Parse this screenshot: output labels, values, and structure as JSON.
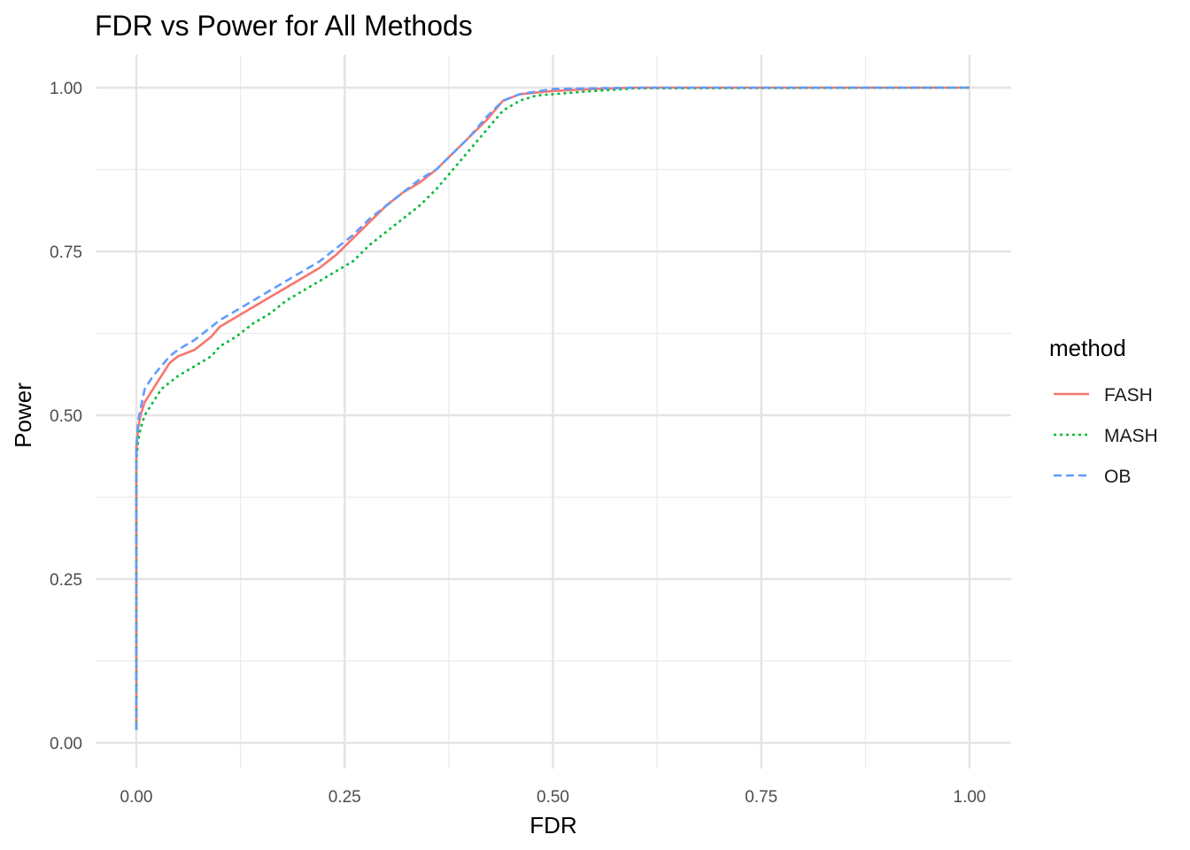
{
  "chart_data": {
    "type": "line",
    "title": "FDR vs Power for All Methods",
    "xlabel": "FDR",
    "ylabel": "Power",
    "xlim": [
      0,
      1
    ],
    "ylim": [
      0,
      1
    ],
    "x_ticks": [
      "0.00",
      "0.25",
      "0.50",
      "0.75",
      "1.00"
    ],
    "y_ticks": [
      "0.00",
      "0.25",
      "0.50",
      "0.75",
      "1.00"
    ],
    "grid": true,
    "legend": {
      "title": "method",
      "position": "right"
    },
    "series": [
      {
        "name": "FASH",
        "color": "#F8766D",
        "dash": "solid",
        "points": [
          [
            0.0,
            0.02
          ],
          [
            0.0,
            0.3
          ],
          [
            0.0,
            0.45
          ],
          [
            0.002,
            0.48
          ],
          [
            0.005,
            0.5
          ],
          [
            0.01,
            0.52
          ],
          [
            0.02,
            0.54
          ],
          [
            0.03,
            0.56
          ],
          [
            0.04,
            0.58
          ],
          [
            0.05,
            0.59
          ],
          [
            0.07,
            0.6
          ],
          [
            0.09,
            0.62
          ],
          [
            0.1,
            0.635
          ],
          [
            0.12,
            0.65
          ],
          [
            0.14,
            0.665
          ],
          [
            0.16,
            0.68
          ],
          [
            0.18,
            0.695
          ],
          [
            0.2,
            0.71
          ],
          [
            0.22,
            0.725
          ],
          [
            0.24,
            0.745
          ],
          [
            0.26,
            0.77
          ],
          [
            0.28,
            0.795
          ],
          [
            0.3,
            0.82
          ],
          [
            0.32,
            0.84
          ],
          [
            0.34,
            0.855
          ],
          [
            0.36,
            0.875
          ],
          [
            0.38,
            0.9
          ],
          [
            0.4,
            0.925
          ],
          [
            0.42,
            0.95
          ],
          [
            0.44,
            0.98
          ],
          [
            0.46,
            0.99
          ],
          [
            0.5,
            0.995
          ],
          [
            0.55,
            0.998
          ],
          [
            0.6,
            1.0
          ],
          [
            1.0,
            1.0
          ]
        ]
      },
      {
        "name": "MASH",
        "color": "#00BA38",
        "dash": "dotted",
        "points": [
          [
            0.0,
            0.02
          ],
          [
            0.0,
            0.3
          ],
          [
            0.0,
            0.43
          ],
          [
            0.002,
            0.46
          ],
          [
            0.005,
            0.48
          ],
          [
            0.01,
            0.5
          ],
          [
            0.02,
            0.52
          ],
          [
            0.03,
            0.54
          ],
          [
            0.05,
            0.56
          ],
          [
            0.07,
            0.575
          ],
          [
            0.09,
            0.59
          ],
          [
            0.1,
            0.605
          ],
          [
            0.12,
            0.62
          ],
          [
            0.14,
            0.64
          ],
          [
            0.16,
            0.655
          ],
          [
            0.18,
            0.675
          ],
          [
            0.2,
            0.69
          ],
          [
            0.22,
            0.705
          ],
          [
            0.24,
            0.72
          ],
          [
            0.26,
            0.735
          ],
          [
            0.28,
            0.76
          ],
          [
            0.3,
            0.78
          ],
          [
            0.32,
            0.8
          ],
          [
            0.34,
            0.82
          ],
          [
            0.36,
            0.845
          ],
          [
            0.38,
            0.875
          ],
          [
            0.4,
            0.905
          ],
          [
            0.42,
            0.935
          ],
          [
            0.44,
            0.965
          ],
          [
            0.46,
            0.98
          ],
          [
            0.48,
            0.988
          ],
          [
            0.5,
            0.99
          ],
          [
            0.55,
            0.995
          ],
          [
            0.6,
            0.999
          ],
          [
            1.0,
            1.0
          ]
        ]
      },
      {
        "name": "OB",
        "color": "#619CFF",
        "dash": "dashed",
        "points": [
          [
            0.0,
            0.02
          ],
          [
            0.0,
            0.3
          ],
          [
            0.0,
            0.45
          ],
          [
            0.002,
            0.49
          ],
          [
            0.005,
            0.51
          ],
          [
            0.01,
            0.54
          ],
          [
            0.02,
            0.56
          ],
          [
            0.03,
            0.575
          ],
          [
            0.04,
            0.59
          ],
          [
            0.05,
            0.6
          ],
          [
            0.07,
            0.615
          ],
          [
            0.09,
            0.635
          ],
          [
            0.1,
            0.645
          ],
          [
            0.12,
            0.66
          ],
          [
            0.14,
            0.675
          ],
          [
            0.16,
            0.69
          ],
          [
            0.18,
            0.705
          ],
          [
            0.2,
            0.72
          ],
          [
            0.22,
            0.735
          ],
          [
            0.24,
            0.755
          ],
          [
            0.26,
            0.775
          ],
          [
            0.28,
            0.8
          ],
          [
            0.3,
            0.82
          ],
          [
            0.32,
            0.84
          ],
          [
            0.34,
            0.86
          ],
          [
            0.36,
            0.875
          ],
          [
            0.38,
            0.9
          ],
          [
            0.4,
            0.925
          ],
          [
            0.42,
            0.955
          ],
          [
            0.44,
            0.98
          ],
          [
            0.46,
            0.99
          ],
          [
            0.5,
            0.998
          ],
          [
            0.55,
            0.999
          ],
          [
            0.6,
            1.0
          ],
          [
            1.0,
            1.0
          ]
        ]
      }
    ]
  }
}
